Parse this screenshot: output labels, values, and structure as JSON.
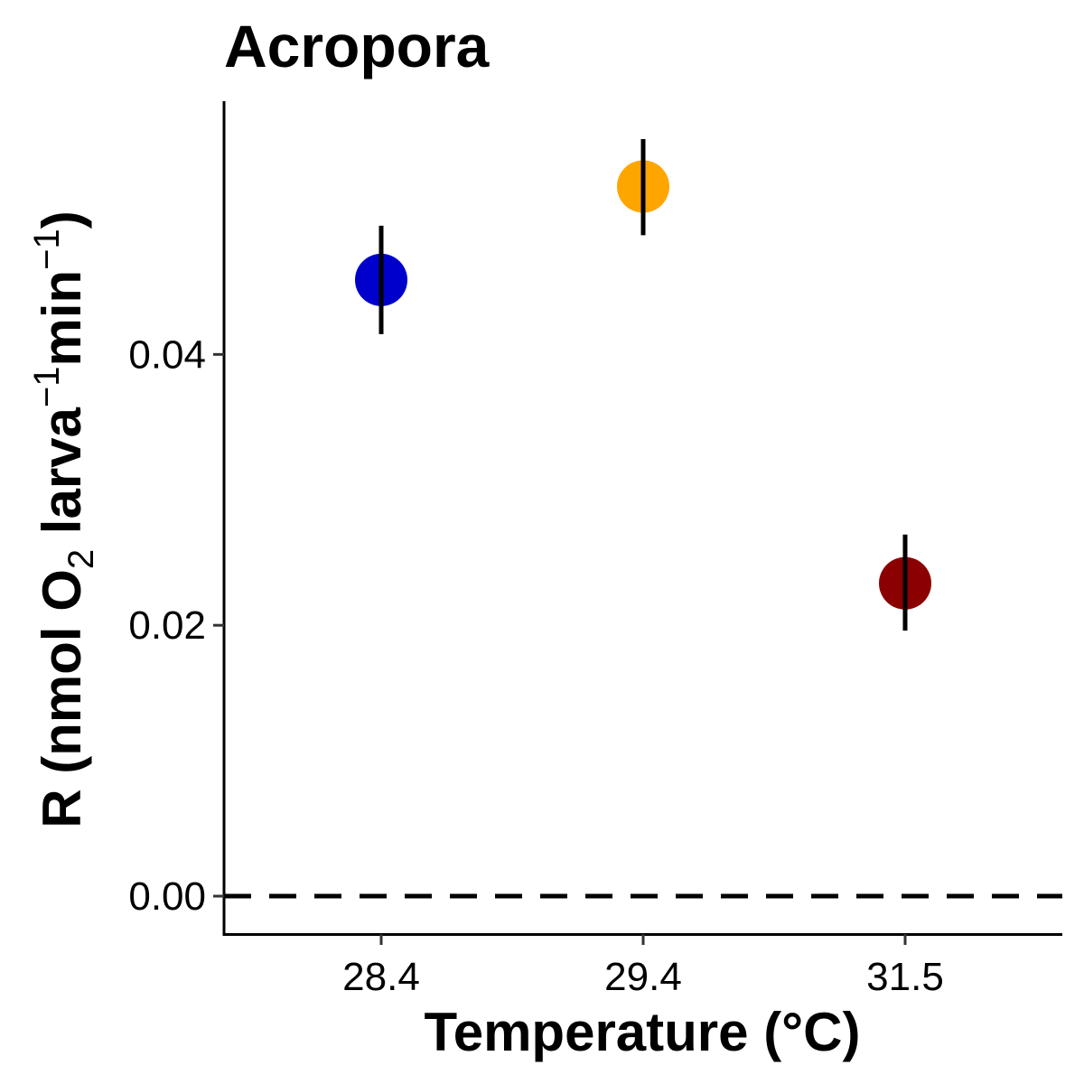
{
  "chart_data": {
    "type": "scatter",
    "title": "Acropora",
    "xlabel": "Temperature (°C)",
    "ylabel": {
      "text": "R (nmol O",
      "subscript": "2",
      "text2": " larva",
      "superscript1": "−1",
      "text3": "min",
      "superscript2": "−1",
      "text4": ")"
    },
    "categories": [
      "28.4",
      "29.4",
      "31.5"
    ],
    "points": [
      {
        "x": "28.4",
        "y": 0.0455,
        "lower": 0.0415,
        "upper": 0.0495,
        "color": "#0000CD"
      },
      {
        "x": "29.4",
        "y": 0.0524,
        "lower": 0.0488,
        "upper": 0.0559,
        "color": "#FFA500"
      },
      {
        "x": "31.5",
        "y": 0.0231,
        "lower": 0.0196,
        "upper": 0.0267,
        "color": "#8B0000"
      }
    ],
    "yticks": [
      {
        "value": 0.0,
        "label": "0.00"
      },
      {
        "value": 0.02,
        "label": "0.02"
      },
      {
        "value": 0.04,
        "label": "0.04"
      }
    ],
    "ylim": [
      -0.0028,
      0.0587
    ],
    "reference_line": {
      "y": 0,
      "style": "dashed",
      "color": "#000000"
    },
    "grid": false,
    "legend": "none"
  }
}
